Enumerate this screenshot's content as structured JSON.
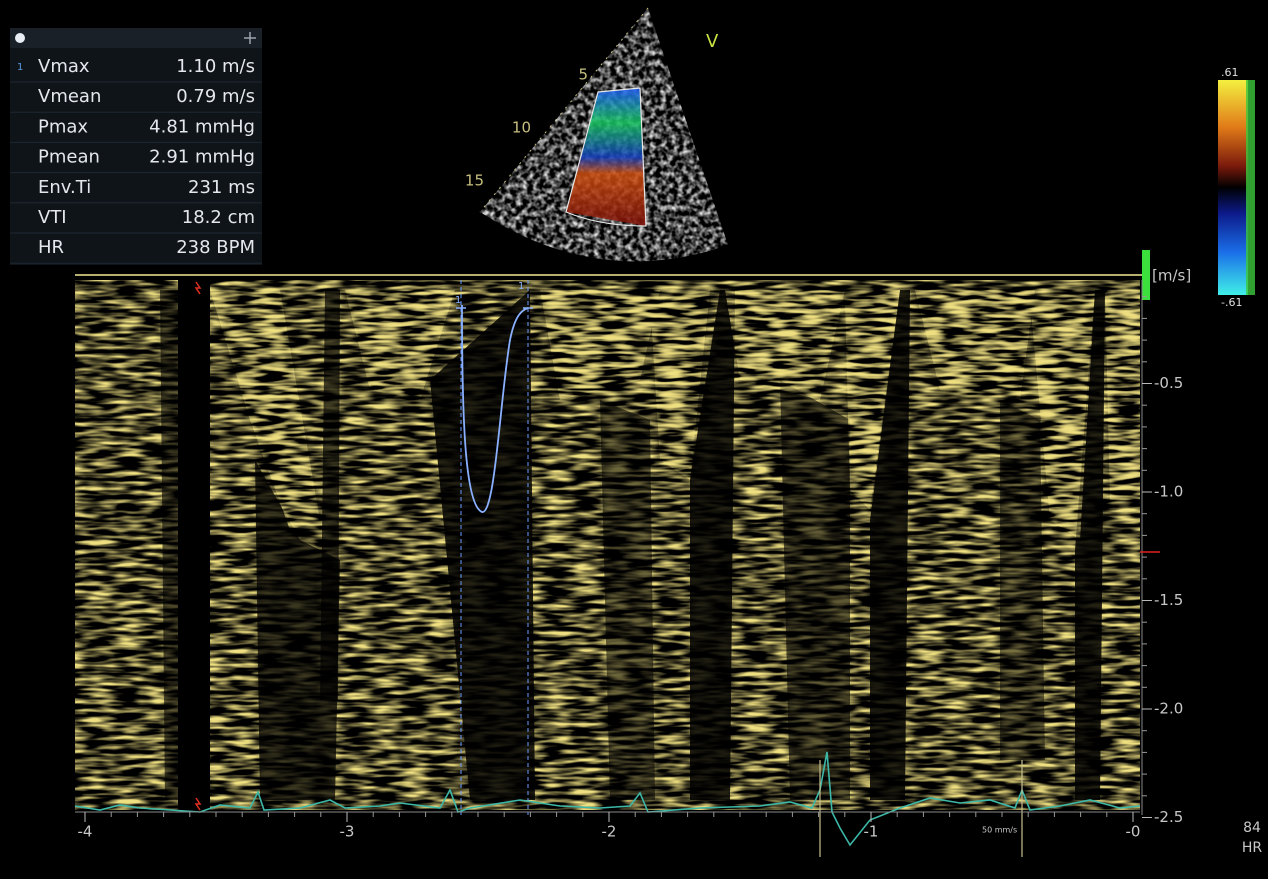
{
  "panel": {
    "rows": [
      {
        "index": "1",
        "label": "Vmax",
        "value": "1.10 m/s"
      },
      {
        "label": "Vmean",
        "value": "0.79 m/s"
      },
      {
        "label": "Pmax",
        "value": "4.81 mmHg"
      },
      {
        "label": "Pmean",
        "value": "2.91 mmHg"
      },
      {
        "label": "Env.Ti",
        "value": "231 ms"
      },
      {
        "label": "VTI",
        "value": "18.2 cm"
      },
      {
        "label": "HR",
        "value": "238 BPM"
      }
    ]
  },
  "sector": {
    "marker": "V",
    "depths": [
      "5",
      "10",
      "15"
    ]
  },
  "color_scale": {
    "max": ".61",
    "min": "-.61"
  },
  "velocity_axis": {
    "unit": "[m/s]",
    "ticks": [
      "-0.5",
      "-1.0",
      "-1.5",
      "-2.0",
      "-2.5"
    ]
  },
  "time_axis": {
    "ticks": [
      "-4",
      "-3",
      "-2",
      "-1",
      "-0"
    ]
  },
  "caliper": {
    "start": "1",
    "end": "1"
  },
  "sweep_speed": "50 mm/s",
  "heart_rate": {
    "value": "84",
    "label": "HR"
  }
}
